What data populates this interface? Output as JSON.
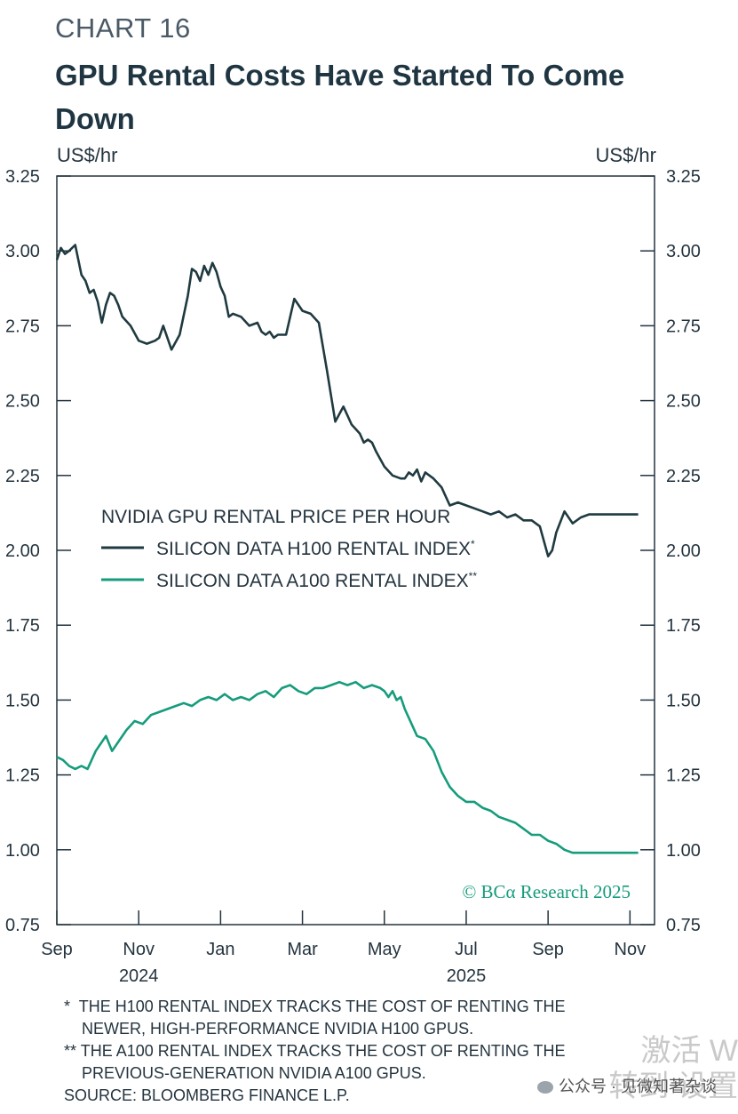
{
  "header": {
    "chart_label": "CHART 16",
    "title": "GPU Rental Costs Have Started To Come Down",
    "unit_left": "US$/hr",
    "unit_right": "US$/hr"
  },
  "colors": {
    "h100": "#1f3a40",
    "a100": "#169c7c",
    "axis": "#24343f",
    "credit": "#169c7c"
  },
  "chart_data": {
    "type": "line",
    "title": "GPU Rental Costs Have Started To Come Down",
    "ylabel": "US$/hr",
    "ylim": [
      0.75,
      3.25
    ],
    "yticks": [
      0.75,
      1.0,
      1.25,
      1.5,
      1.75,
      2.0,
      2.25,
      2.5,
      2.75,
      3.0,
      3.25
    ],
    "ytick_labels": [
      "0.75",
      "1.00",
      "1.25",
      "1.50",
      "1.75",
      "2.00",
      "2.25",
      "2.50",
      "2.75",
      "3.00",
      "3.25"
    ],
    "xlim": [
      0,
      14.6
    ],
    "xticks": [
      0,
      2,
      4,
      6,
      8,
      10,
      12,
      14
    ],
    "xtick_labels": [
      "Sep",
      "Nov",
      "Jan",
      "Mar",
      "May",
      "Jul",
      "Sep",
      "Nov"
    ],
    "year_labels": [
      {
        "x": 2,
        "label": "2024"
      },
      {
        "x": 10,
        "label": "2025"
      }
    ],
    "legend_title": "NVIDIA GPU RENTAL PRICE PER HOUR",
    "series": [
      {
        "name": "SILICON DATA H100 RENTAL INDEX",
        "marker": "*",
        "color_key": "h100",
        "x": [
          0,
          0.1,
          0.2,
          0.3,
          0.45,
          0.6,
          0.7,
          0.8,
          0.9,
          1.0,
          1.1,
          1.2,
          1.3,
          1.4,
          1.5,
          1.6,
          1.8,
          2.0,
          2.2,
          2.4,
          2.5,
          2.6,
          2.8,
          3.0,
          3.2,
          3.3,
          3.4,
          3.5,
          3.6,
          3.7,
          3.8,
          3.9,
          4.0,
          4.1,
          4.2,
          4.3,
          4.5,
          4.7,
          4.9,
          5.0,
          5.1,
          5.2,
          5.3,
          5.4,
          5.6,
          5.8,
          6.0,
          6.2,
          6.4,
          6.6,
          6.8,
          7.0,
          7.2,
          7.4,
          7.5,
          7.6,
          7.7,
          7.8,
          8.0,
          8.2,
          8.4,
          8.5,
          8.6,
          8.7,
          8.8,
          8.9,
          9.0,
          9.1,
          9.2,
          9.4,
          9.6,
          9.8,
          10.0,
          10.2,
          10.4,
          10.6,
          10.8,
          11.0,
          11.2,
          11.4,
          11.6,
          11.8,
          12.0,
          12.1,
          12.2,
          12.4,
          12.6,
          12.8,
          13.0,
          13.2,
          13.4,
          13.5,
          13.6,
          13.65,
          13.7,
          13.8,
          13.85,
          13.9,
          14.0,
          14.1,
          14.2
        ],
        "values": [
          2.97,
          3.01,
          2.99,
          3.0,
          3.02,
          2.92,
          2.9,
          2.86,
          2.87,
          2.83,
          2.76,
          2.82,
          2.86,
          2.85,
          2.82,
          2.78,
          2.75,
          2.7,
          2.69,
          2.7,
          2.71,
          2.75,
          2.67,
          2.72,
          2.85,
          2.94,
          2.93,
          2.9,
          2.95,
          2.92,
          2.96,
          2.93,
          2.88,
          2.85,
          2.78,
          2.79,
          2.78,
          2.75,
          2.76,
          2.73,
          2.72,
          2.73,
          2.71,
          2.72,
          2.72,
          2.84,
          2.8,
          2.79,
          2.76,
          2.6,
          2.43,
          2.48,
          2.42,
          2.39,
          2.36,
          2.37,
          2.36,
          2.33,
          2.28,
          2.25,
          2.24,
          2.24,
          2.26,
          2.25,
          2.27,
          2.23,
          2.26,
          2.25,
          2.24,
          2.21,
          2.15,
          2.16,
          2.15,
          2.14,
          2.13,
          2.12,
          2.13,
          2.11,
          2.12,
          2.1,
          2.1,
          2.08,
          1.98,
          2.0,
          2.06,
          2.13,
          2.09,
          2.11,
          2.12,
          2.12,
          2.12,
          2.12,
          2.12,
          2.12,
          2.12,
          2.12,
          2.12,
          2.12,
          2.12,
          2.12,
          2.12
        ]
      },
      {
        "name": "SILICON DATA A100 RENTAL INDEX",
        "marker": "**",
        "color_key": "a100",
        "x": [
          0,
          0.15,
          0.3,
          0.45,
          0.6,
          0.75,
          0.85,
          0.95,
          1.05,
          1.2,
          1.35,
          1.5,
          1.7,
          1.9,
          2.1,
          2.3,
          2.5,
          2.7,
          2.9,
          3.1,
          3.3,
          3.5,
          3.7,
          3.9,
          4.1,
          4.3,
          4.5,
          4.7,
          4.9,
          5.1,
          5.3,
          5.5,
          5.7,
          5.9,
          6.1,
          6.3,
          6.5,
          6.7,
          6.9,
          7.1,
          7.3,
          7.5,
          7.7,
          7.9,
          8.0,
          8.1,
          8.2,
          8.3,
          8.4,
          8.5,
          8.6,
          8.8,
          9.0,
          9.2,
          9.4,
          9.6,
          9.8,
          10.0,
          10.2,
          10.4,
          10.6,
          10.8,
          11.0,
          11.2,
          11.4,
          11.6,
          11.8,
          12.0,
          12.2,
          12.4,
          12.6,
          12.8,
          13.0,
          13.2,
          13.4,
          13.6,
          13.8,
          14.0,
          14.1,
          14.2
        ],
        "values": [
          1.31,
          1.3,
          1.28,
          1.27,
          1.28,
          1.27,
          1.3,
          1.33,
          1.35,
          1.38,
          1.33,
          1.36,
          1.4,
          1.43,
          1.42,
          1.45,
          1.46,
          1.47,
          1.48,
          1.49,
          1.48,
          1.5,
          1.51,
          1.5,
          1.52,
          1.5,
          1.51,
          1.5,
          1.52,
          1.53,
          1.51,
          1.54,
          1.55,
          1.53,
          1.52,
          1.54,
          1.54,
          1.55,
          1.56,
          1.55,
          1.56,
          1.54,
          1.55,
          1.54,
          1.53,
          1.51,
          1.53,
          1.5,
          1.51,
          1.47,
          1.44,
          1.38,
          1.37,
          1.33,
          1.26,
          1.21,
          1.18,
          1.16,
          1.16,
          1.14,
          1.13,
          1.11,
          1.1,
          1.09,
          1.07,
          1.05,
          1.05,
          1.03,
          1.02,
          1.0,
          0.99,
          0.99,
          0.99,
          0.99,
          0.99,
          0.99,
          0.99,
          0.99,
          0.99,
          0.99
        ]
      }
    ],
    "credit": "© BCα Research 2025"
  },
  "footnotes": {
    "note1_marker": "*",
    "note1_line1": "THE H100 RENTAL INDEX TRACKS THE COST OF RENTING THE",
    "note1_line2": "NEWER, HIGH-PERFORMANCE NVIDIA H100 GPUS.",
    "note2_marker": "**",
    "note2_line1": "THE A100 RENTAL INDEX TRACKS THE COST OF RENTING THE",
    "note2_line2": "PREVIOUS-GENERATION NVIDIA A100 GPUS.",
    "source": "SOURCE: BLOOMBERG FINANCE L.P."
  },
  "overlay": {
    "watermark": "公众号 · 见微知著杂谈",
    "activate_line1": "激活 W",
    "activate_line2": "转到 设置"
  }
}
